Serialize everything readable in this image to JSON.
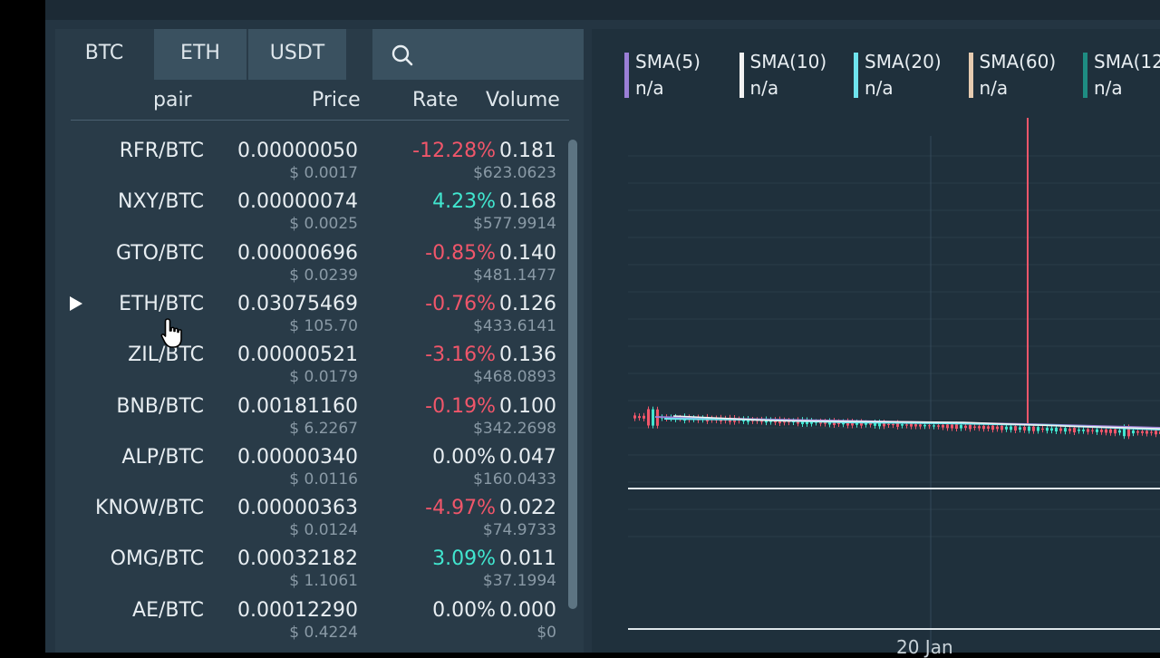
{
  "tabs": [
    "BTC",
    "ETH",
    "USDT"
  ],
  "columns": {
    "pair": "pair",
    "price": "Price",
    "rate": "Rate",
    "volume": "Volume"
  },
  "rows": [
    {
      "pair": "RFR/BTC",
      "price": "0.00000050",
      "usd": "$ 0.0017",
      "rate": "-12.28%",
      "dir": "neg",
      "volume": "0.181",
      "volume_usd": "$623.0623"
    },
    {
      "pair": "NXY/BTC",
      "price": "0.00000074",
      "usd": "$ 0.0025",
      "rate": "4.23%",
      "dir": "pos",
      "volume": "0.168",
      "volume_usd": "$577.9914"
    },
    {
      "pair": "GTO/BTC",
      "price": "0.00000696",
      "usd": "$ 0.0239",
      "rate": "-0.85%",
      "dir": "neg",
      "volume": "0.140",
      "volume_usd": "$481.1477"
    },
    {
      "pair": "ETH/BTC",
      "price": "0.03075469",
      "usd": "$ 105.70",
      "rate": "-0.76%",
      "dir": "neg",
      "volume": "0.126",
      "volume_usd": "$433.6141",
      "selected": true
    },
    {
      "pair": "ZIL/BTC",
      "price": "0.00000521",
      "usd": "$ 0.0179",
      "rate": "-3.16%",
      "dir": "neg",
      "volume": "0.136",
      "volume_usd": "$468.0893"
    },
    {
      "pair": "BNB/BTC",
      "price": "0.00181160",
      "usd": "$ 6.2267",
      "rate": "-0.19%",
      "dir": "neg",
      "volume": "0.100",
      "volume_usd": "$342.2698"
    },
    {
      "pair": "ALP/BTC",
      "price": "0.00000340",
      "usd": "$ 0.0116",
      "rate": "0.00%",
      "dir": "zero",
      "volume": "0.047",
      "volume_usd": "$160.0433"
    },
    {
      "pair": "KNOW/BTC",
      "price": "0.00000363",
      "usd": "$ 0.0124",
      "rate": "-4.97%",
      "dir": "neg",
      "volume": "0.022",
      "volume_usd": "$74.9733"
    },
    {
      "pair": "OMG/BTC",
      "price": "0.00032182",
      "usd": "$ 1.1061",
      "rate": "3.09%",
      "dir": "pos",
      "volume": "0.011",
      "volume_usd": "$37.1994"
    },
    {
      "pair": "AE/BTC",
      "price": "0.00012290",
      "usd": "$ 0.4224",
      "rate": "0.00%",
      "dir": "zero",
      "volume": "0.000",
      "volume_usd": "$0"
    }
  ],
  "chart": {
    "legend": [
      {
        "label": "SMA(5)",
        "value": "n/a",
        "color": "#9b7fd6"
      },
      {
        "label": "SMA(10)",
        "value": "n/a",
        "color": "#f2f2f2"
      },
      {
        "label": "SMA(20)",
        "value": "n/a",
        "color": "#6fe3ee"
      },
      {
        "label": "SMA(60)",
        "value": "n/a",
        "color": "#e6cbb0"
      },
      {
        "label": "SMA(12",
        "value": "n/a",
        "color": "#1e8c82"
      }
    ],
    "x_label": "20 Jan",
    "colors": {
      "down": "#f0566a",
      "up": "#41e6cf"
    }
  }
}
